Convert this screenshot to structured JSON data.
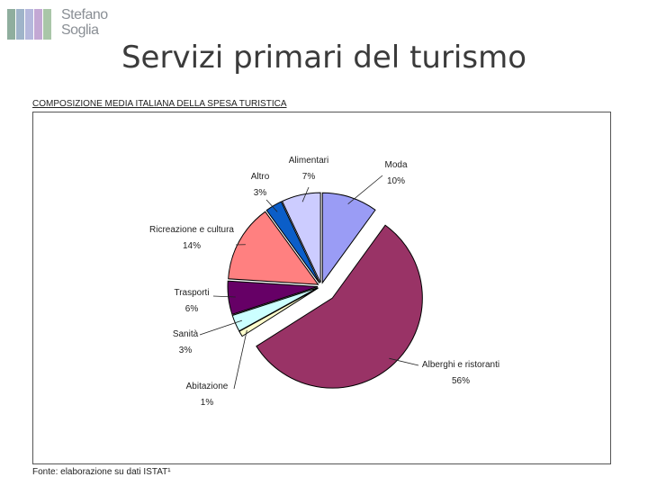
{
  "logo": {
    "line1": "Stefano",
    "line2": "Soglia",
    "colors": [
      "#8fae9e",
      "#9fb4c9",
      "#b5b8dc",
      "#c3a8d4",
      "#a9c6a8"
    ]
  },
  "slide_title": "Servizi primari del turismo",
  "chart_heading": "COMPOSIZIONE MEDIA ITALIANA DELLA SPESA TURISTICA",
  "source_note": "Fonte: elaborazione su dati ISTAT¹",
  "chart_data": {
    "type": "pie",
    "title": "COMPOSIZIONE MEDIA ITALIANA DELLA SPESA TURISTICA",
    "slices": [
      {
        "name": "Moda",
        "value": 10,
        "label": "10%",
        "color": "#9a9cf5"
      },
      {
        "name": "Alberghi e ristoranti",
        "value": 56,
        "label": "56%",
        "color": "#993366",
        "exploded": true
      },
      {
        "name": "Abitazione",
        "value": 1,
        "label": "1%",
        "color": "#ffffcc"
      },
      {
        "name": "Sanità",
        "value": 3,
        "label": "3%",
        "color": "#ccffff"
      },
      {
        "name": "Trasporti",
        "value": 6,
        "label": "6%",
        "color": "#660066"
      },
      {
        "name": "Ricreazione e cultura",
        "value": 14,
        "label": "14%",
        "color": "#ff8080"
      },
      {
        "name": "Altro",
        "value": 3,
        "label": "3%",
        "color": "#0b5ec8"
      },
      {
        "name": "Alimentari",
        "value": 7,
        "label": "7%",
        "color": "#ccccff"
      }
    ]
  }
}
